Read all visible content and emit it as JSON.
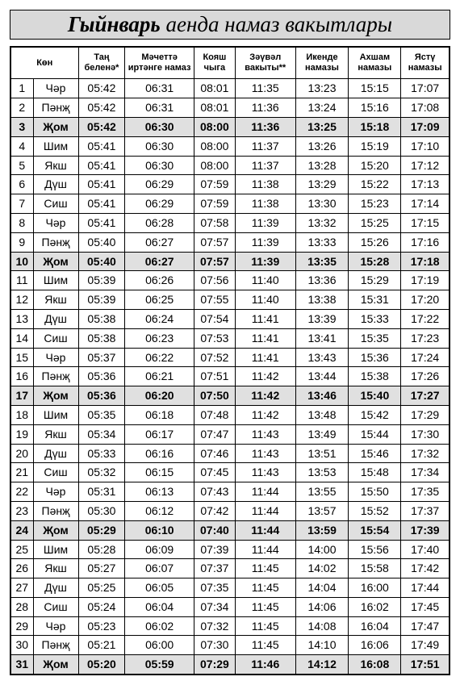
{
  "title_bold": "Гыйнварь",
  "title_rest": " аенда намаз вакытлары",
  "headers": [
    "Көн",
    "Таң беленә*",
    "Мәчеттә иртәнге намаз",
    "Кояш чыга",
    "Зәүвәл вакыты**",
    "Икенде намазы",
    "Ахшам намазы",
    "Ястү намазы"
  ],
  "highlight_rows": [
    3,
    10,
    17,
    24,
    31
  ],
  "colors": {
    "highlight_bg": "#e0e0e0",
    "title_bg": "#d9d9d9"
  },
  "rows": [
    {
      "d": 1,
      "dow": "Чәр",
      "t": [
        "05:42",
        "06:31",
        "08:01",
        "11:35",
        "13:23",
        "15:15",
        "17:07"
      ]
    },
    {
      "d": 2,
      "dow": "Пәнҗ",
      "t": [
        "05:42",
        "06:31",
        "08:01",
        "11:36",
        "13:24",
        "15:16",
        "17:08"
      ]
    },
    {
      "d": 3,
      "dow": "Җом",
      "t": [
        "05:42",
        "06:30",
        "08:00",
        "11:36",
        "13:25",
        "15:18",
        "17:09"
      ]
    },
    {
      "d": 4,
      "dow": "Шим",
      "t": [
        "05:41",
        "06:30",
        "08:00",
        "11:37",
        "13:26",
        "15:19",
        "17:10"
      ]
    },
    {
      "d": 5,
      "dow": "Якш",
      "t": [
        "05:41",
        "06:30",
        "08:00",
        "11:37",
        "13:28",
        "15:20",
        "17:12"
      ]
    },
    {
      "d": 6,
      "dow": "Дүш",
      "t": [
        "05:41",
        "06:29",
        "07:59",
        "11:38",
        "13:29",
        "15:22",
        "17:13"
      ]
    },
    {
      "d": 7,
      "dow": "Сиш",
      "t": [
        "05:41",
        "06:29",
        "07:59",
        "11:38",
        "13:30",
        "15:23",
        "17:14"
      ]
    },
    {
      "d": 8,
      "dow": "Чәр",
      "t": [
        "05:41",
        "06:28",
        "07:58",
        "11:39",
        "13:32",
        "15:25",
        "17:15"
      ]
    },
    {
      "d": 9,
      "dow": "Пәнҗ",
      "t": [
        "05:40",
        "06:27",
        "07:57",
        "11:39",
        "13:33",
        "15:26",
        "17:16"
      ]
    },
    {
      "d": 10,
      "dow": "Җом",
      "t": [
        "05:40",
        "06:27",
        "07:57",
        "11:39",
        "13:35",
        "15:28",
        "17:18"
      ]
    },
    {
      "d": 11,
      "dow": "Шим",
      "t": [
        "05:39",
        "06:26",
        "07:56",
        "11:40",
        "13:36",
        "15:29",
        "17:19"
      ]
    },
    {
      "d": 12,
      "dow": "Якш",
      "t": [
        "05:39",
        "06:25",
        "07:55",
        "11:40",
        "13:38",
        "15:31",
        "17:20"
      ]
    },
    {
      "d": 13,
      "dow": "Дүш",
      "t": [
        "05:38",
        "06:24",
        "07:54",
        "11:41",
        "13:39",
        "15:33",
        "17:22"
      ]
    },
    {
      "d": 14,
      "dow": "Сиш",
      "t": [
        "05:38",
        "06:23",
        "07:53",
        "11:41",
        "13:41",
        "15:35",
        "17:23"
      ]
    },
    {
      "d": 15,
      "dow": "Чәр",
      "t": [
        "05:37",
        "06:22",
        "07:52",
        "11:41",
        "13:43",
        "15:36",
        "17:24"
      ]
    },
    {
      "d": 16,
      "dow": "Пәнҗ",
      "t": [
        "05:36",
        "06:21",
        "07:51",
        "11:42",
        "13:44",
        "15:38",
        "17:26"
      ]
    },
    {
      "d": 17,
      "dow": "Җом",
      "t": [
        "05:36",
        "06:20",
        "07:50",
        "11:42",
        "13:46",
        "15:40",
        "17:27"
      ]
    },
    {
      "d": 18,
      "dow": "Шим",
      "t": [
        "05:35",
        "06:18",
        "07:48",
        "11:42",
        "13:48",
        "15:42",
        "17:29"
      ]
    },
    {
      "d": 19,
      "dow": "Якш",
      "t": [
        "05:34",
        "06:17",
        "07:47",
        "11:43",
        "13:49",
        "15:44",
        "17:30"
      ]
    },
    {
      "d": 20,
      "dow": "Дүш",
      "t": [
        "05:33",
        "06:16",
        "07:46",
        "11:43",
        "13:51",
        "15:46",
        "17:32"
      ]
    },
    {
      "d": 21,
      "dow": "Сиш",
      "t": [
        "05:32",
        "06:15",
        "07:45",
        "11:43",
        "13:53",
        "15:48",
        "17:34"
      ]
    },
    {
      "d": 22,
      "dow": "Чәр",
      "t": [
        "05:31",
        "06:13",
        "07:43",
        "11:44",
        "13:55",
        "15:50",
        "17:35"
      ]
    },
    {
      "d": 23,
      "dow": "Пәнҗ",
      "t": [
        "05:30",
        "06:12",
        "07:42",
        "11:44",
        "13:57",
        "15:52",
        "17:37"
      ]
    },
    {
      "d": 24,
      "dow": "Җом",
      "t": [
        "05:29",
        "06:10",
        "07:40",
        "11:44",
        "13:59",
        "15:54",
        "17:39"
      ]
    },
    {
      "d": 25,
      "dow": "Шим",
      "t": [
        "05:28",
        "06:09",
        "07:39",
        "11:44",
        "14:00",
        "15:56",
        "17:40"
      ]
    },
    {
      "d": 26,
      "dow": "Якш",
      "t": [
        "05:27",
        "06:07",
        "07:37",
        "11:45",
        "14:02",
        "15:58",
        "17:42"
      ]
    },
    {
      "d": 27,
      "dow": "Дүш",
      "t": [
        "05:25",
        "06:05",
        "07:35",
        "11:45",
        "14:04",
        "16:00",
        "17:44"
      ]
    },
    {
      "d": 28,
      "dow": "Сиш",
      "t": [
        "05:24",
        "06:04",
        "07:34",
        "11:45",
        "14:06",
        "16:02",
        "17:45"
      ]
    },
    {
      "d": 29,
      "dow": "Чәр",
      "t": [
        "05:23",
        "06:02",
        "07:32",
        "11:45",
        "14:08",
        "16:04",
        "17:47"
      ]
    },
    {
      "d": 30,
      "dow": "Пәнҗ",
      "t": [
        "05:21",
        "06:00",
        "07:30",
        "11:45",
        "14:10",
        "16:06",
        "17:49"
      ]
    },
    {
      "d": 31,
      "dow": "Җом",
      "t": [
        "05:20",
        "05:59",
        "07:29",
        "11:46",
        "14:12",
        "16:08",
        "17:51"
      ]
    }
  ]
}
